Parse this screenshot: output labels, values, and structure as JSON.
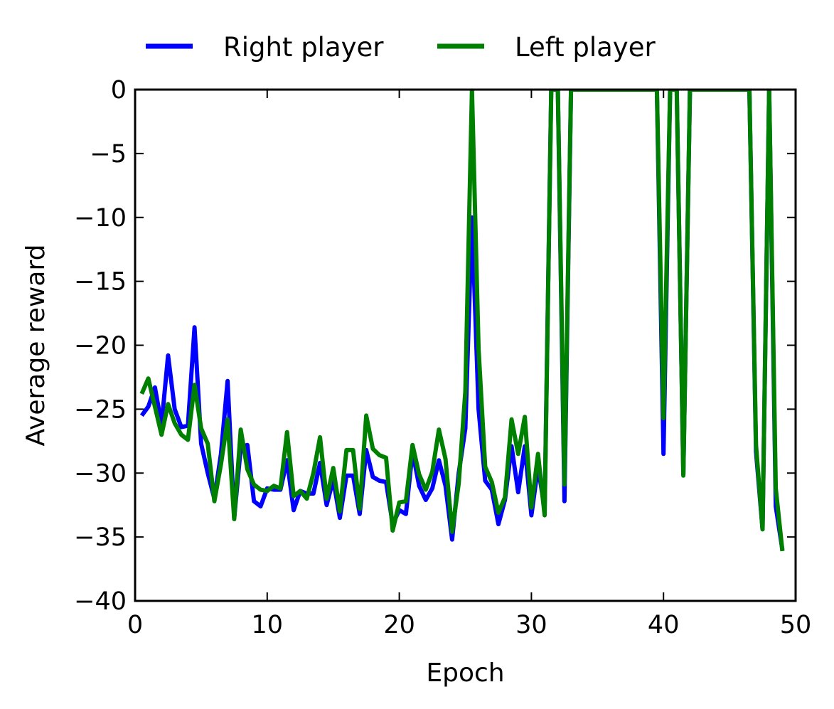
{
  "chart_data": {
    "type": "line",
    "title": "",
    "xlabel": "Epoch",
    "ylabel": "Average reward",
    "xlim": [
      0,
      50
    ],
    "ylim": [
      -40,
      0
    ],
    "xticks": [
      0,
      10,
      20,
      30,
      40,
      50
    ],
    "yticks": [
      0,
      -5,
      -10,
      -15,
      -20,
      -25,
      -30,
      -35,
      -40
    ],
    "xtick_labels": [
      "0",
      "10",
      "20",
      "30",
      "40",
      "50"
    ],
    "ytick_labels": [
      "0",
      "−5",
      "−10",
      "−15",
      "−20",
      "−25",
      "−30",
      "−35",
      "−40"
    ],
    "grid": false,
    "legend_position": "top-center, outside plot",
    "series": [
      {
        "name": "Right player",
        "color": "#0000ff",
        "x": [
          0.5,
          1.0,
          1.5,
          2.0,
          2.5,
          3.0,
          3.5,
          4.0,
          4.5,
          5.0,
          5.5,
          6.0,
          6.5,
          7.0,
          7.5,
          8.0,
          8.5,
          9.0,
          9.5,
          10.0,
          10.5,
          11.0,
          11.5,
          12.0,
          12.5,
          13.0,
          13.5,
          14.0,
          14.5,
          15.0,
          15.5,
          16.0,
          16.5,
          17.0,
          17.5,
          18.0,
          18.5,
          19.0,
          19.5,
          20.0,
          20.5,
          21.0,
          21.5,
          22.0,
          22.5,
          23.0,
          23.5,
          24.0,
          24.5,
          25.0,
          25.5,
          26.0,
          26.5,
          27.0,
          27.5,
          28.0,
          28.5,
          29.0,
          29.5,
          30.0,
          30.5,
          31.0,
          31.5,
          32.0,
          32.5,
          33.0,
          33.5,
          34.0,
          34.5,
          35.0,
          35.5,
          36.0,
          36.5,
          37.0,
          37.5,
          38.0,
          38.5,
          39.0,
          39.5,
          40.0,
          40.5,
          41.0,
          41.5,
          42.0,
          42.5,
          43.0,
          43.5,
          44.0,
          44.5,
          45.0,
          45.5,
          46.0,
          46.5,
          47.0,
          47.5,
          48.0,
          48.5,
          49.0
        ],
        "y": [
          -25.5,
          -24.8,
          -23.3,
          -26.2,
          -20.8,
          -25.0,
          -26.4,
          -26.3,
          -18.6,
          -27.7,
          -30.0,
          -32.0,
          -28.5,
          -22.8,
          -33.5,
          -28.0,
          -27.8,
          -32.2,
          -32.6,
          -31.2,
          -31.3,
          -31.3,
          -29.0,
          -32.9,
          -31.4,
          -31.6,
          -31.6,
          -29.2,
          -32.5,
          -30.5,
          -33.5,
          -30.2,
          -30.2,
          -33.2,
          -28.2,
          -30.3,
          -30.6,
          -30.7,
          -34.0,
          -32.9,
          -33.2,
          -28.3,
          -31.0,
          -32.1,
          -31.2,
          -29.0,
          -31.0,
          -35.2,
          -30.0,
          -26.5,
          -10.0,
          -25.0,
          -30.6,
          -31.3,
          -34.0,
          -32.1,
          -27.9,
          -31.5,
          -27.9,
          -33.3,
          -29.5,
          -32.8,
          0.0,
          0.0,
          -32.2,
          0.0,
          0.0,
          0.0,
          0.0,
          0.0,
          0.0,
          0.0,
          0.0,
          0.0,
          0.0,
          0.0,
          0.0,
          0.0,
          0.0,
          -28.5,
          0.0,
          0.0,
          -30.1,
          0.0,
          0.0,
          0.0,
          0.0,
          0.0,
          0.0,
          0.0,
          0.0,
          0.0,
          0.0,
          -28.3,
          -34.4,
          0.0,
          -32.6,
          -36.0
        ]
      },
      {
        "name": "Left player",
        "color": "#008000",
        "x": [
          0.5,
          1.0,
          1.5,
          2.0,
          2.5,
          3.0,
          3.5,
          4.0,
          4.5,
          5.0,
          5.5,
          6.0,
          6.5,
          7.0,
          7.5,
          8.0,
          8.5,
          9.0,
          9.5,
          10.0,
          10.5,
          11.0,
          11.5,
          12.0,
          12.5,
          13.0,
          13.5,
          14.0,
          14.5,
          15.0,
          15.5,
          16.0,
          16.5,
          17.0,
          17.5,
          18.0,
          18.5,
          19.0,
          19.5,
          20.0,
          20.5,
          21.0,
          21.5,
          22.0,
          22.5,
          23.0,
          23.5,
          24.0,
          24.5,
          25.0,
          25.5,
          26.0,
          26.5,
          27.0,
          27.5,
          28.0,
          28.5,
          29.0,
          29.5,
          30.0,
          30.5,
          31.0,
          31.5,
          32.0,
          32.5,
          33.0,
          33.5,
          34.0,
          34.5,
          35.0,
          35.5,
          36.0,
          36.5,
          37.0,
          37.5,
          38.0,
          38.5,
          39.0,
          39.5,
          40.0,
          40.5,
          41.0,
          41.5,
          42.0,
          42.5,
          43.0,
          43.5,
          44.0,
          44.5,
          45.0,
          45.5,
          46.0,
          46.5,
          47.0,
          47.5,
          48.0,
          48.5,
          49.0
        ],
        "y": [
          -23.8,
          -22.6,
          -24.8,
          -27.0,
          -24.6,
          -26.1,
          -27.0,
          -27.4,
          -23.1,
          -26.5,
          -27.7,
          -32.2,
          -29.3,
          -25.8,
          -33.6,
          -26.6,
          -29.7,
          -30.9,
          -31.3,
          -31.4,
          -31.0,
          -31.2,
          -26.8,
          -31.8,
          -31.4,
          -32.0,
          -30.0,
          -27.2,
          -32.0,
          -29.6,
          -33.0,
          -28.2,
          -28.2,
          -32.8,
          -25.5,
          -28.1,
          -28.6,
          -28.8,
          -34.5,
          -32.3,
          -32.2,
          -27.8,
          -30.1,
          -31.3,
          -29.9,
          -26.6,
          -28.9,
          -34.6,
          -30.8,
          -23.6,
          0.0,
          -20.3,
          -29.5,
          -30.7,
          -33.1,
          -31.9,
          -25.8,
          -28.5,
          -25.6,
          -32.7,
          -28.5,
          -33.3,
          0.0,
          0.0,
          -30.9,
          0.0,
          0.0,
          0.0,
          0.0,
          0.0,
          0.0,
          0.0,
          0.0,
          0.0,
          0.0,
          0.0,
          0.0,
          0.0,
          0.0,
          -25.7,
          0.0,
          0.0,
          -30.2,
          0.0,
          0.0,
          0.0,
          0.0,
          0.0,
          0.0,
          0.0,
          0.0,
          0.0,
          0.0,
          -27.8,
          -34.4,
          0.0,
          -31.2,
          -36.1
        ]
      }
    ]
  }
}
